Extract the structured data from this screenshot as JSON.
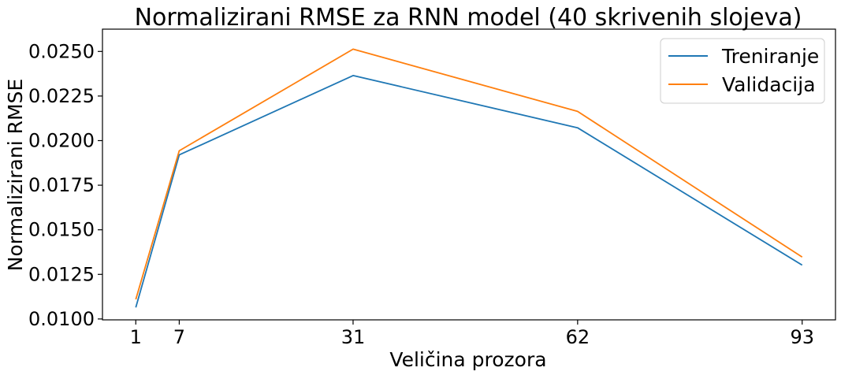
{
  "chart_data": {
    "type": "line",
    "title": "Normalizirani RMSE za RNN model (40 skrivenih slojeva)",
    "xlabel": "Veličina prozora",
    "ylabel": "Normalizirani RMSE",
    "x": [
      1,
      7,
      31,
      62,
      93
    ],
    "x_ticks": [
      1,
      7,
      31,
      62,
      93
    ],
    "x_tick_labels": [
      "1",
      "7",
      "31",
      "62",
      "93"
    ],
    "xlim": [
      -3.6,
      97.6
    ],
    "ylim": [
      0.00995,
      0.02625
    ],
    "y_ticks": [
      0.01,
      0.0125,
      0.015,
      0.0175,
      0.02,
      0.0225,
      0.025
    ],
    "y_tick_labels": [
      "0.0100",
      "0.0125",
      "0.0150",
      "0.0175",
      "0.0200",
      "0.0225",
      "0.0250"
    ],
    "grid": false,
    "legend_position": "top-right",
    "series": [
      {
        "name": "Treniranje",
        "color": "#1f77b4",
        "values": [
          0.01065,
          0.0192,
          0.02365,
          0.02072,
          0.01302
        ]
      },
      {
        "name": "Validacija",
        "color": "#ff7f0e",
        "values": [
          0.0111,
          0.01943,
          0.02513,
          0.02164,
          0.01347
        ]
      }
    ]
  }
}
